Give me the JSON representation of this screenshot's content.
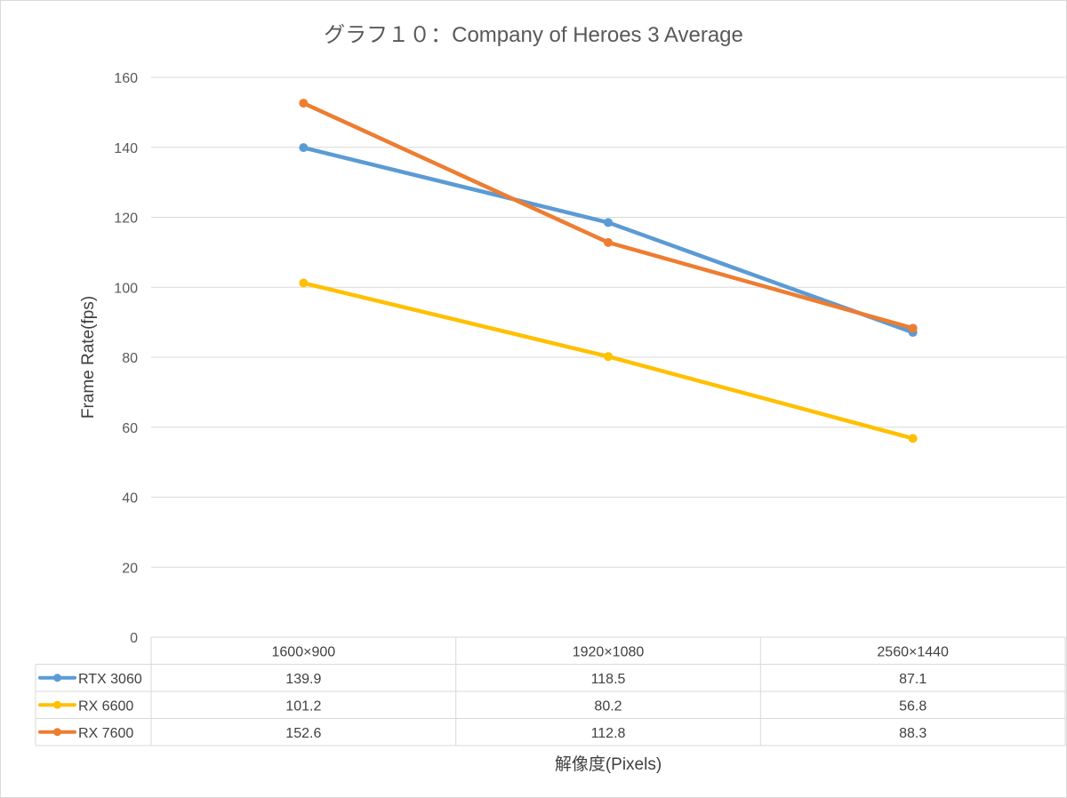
{
  "chart_data": {
    "type": "line",
    "title": "グラフ１０：Company of Heroes 3 Average",
    "xlabel": "解像度(Pixels)",
    "ylabel": "Frame Rate(fps)",
    "ylim": [
      0,
      160
    ],
    "yticks": [
      0,
      20,
      40,
      60,
      80,
      100,
      120,
      140,
      160
    ],
    "grid": "horizontal",
    "legend": "data-table",
    "categories": [
      "1600×900",
      "1920×1080",
      "2560×1440"
    ],
    "series": [
      {
        "name": "RTX 3060",
        "color": "#5b9bd5",
        "values": [
          139.9,
          118.5,
          87.1
        ],
        "labels": [
          "139.9",
          "118.5",
          "87.1"
        ]
      },
      {
        "name": "RX 6600",
        "color": "#ffc000",
        "values": [
          101.2,
          80.2,
          56.8
        ],
        "labels": [
          "101.2",
          "80.2",
          "56.8"
        ]
      },
      {
        "name": "RX 7600",
        "color": "#ed7d31",
        "values": [
          152.6,
          112.8,
          88.3
        ],
        "labels": [
          "152.6",
          "112.8",
          "88.3"
        ]
      }
    ]
  }
}
